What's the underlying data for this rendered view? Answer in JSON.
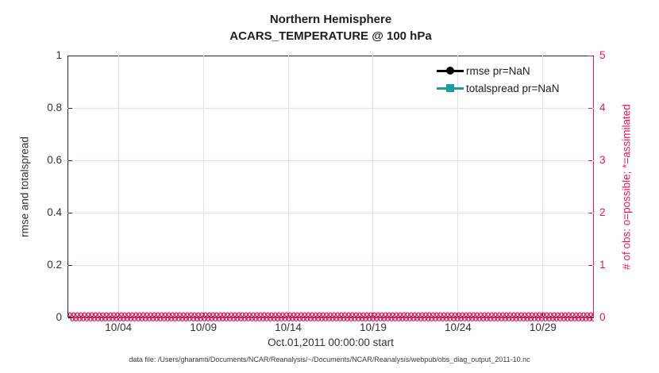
{
  "figure": {
    "title": "Northern Hemisphere",
    "subtitle": "ACARS_TEMPERATURE @ 100 hPa",
    "caption": "data file: /Users/gharamti/Documents/NCAR/Reanalysis/~/Documents/NCAR/Reanalysis/webpub/obs_diag_output_2011-10.nc"
  },
  "axes": {
    "left": {
      "label": "rmse and totalspread",
      "tick_labels": [
        "1",
        "0.8",
        "0.6",
        "0.4",
        "0.2",
        "0"
      ],
      "color": "#262626"
    },
    "right": {
      "label": "# of obs: o=possible; *=assimilated",
      "tick_labels": [
        "5",
        "4",
        "3",
        "2",
        "1",
        "0"
      ],
      "color": "#E8175D"
    },
    "x": {
      "label": "Oct.01,2011 00:00:00 start",
      "tick_labels": [
        "10/04",
        "10/09",
        "10/14",
        "10/19",
        "10/24",
        "10/29"
      ]
    }
  },
  "legend": {
    "items": [
      {
        "label": "rmse pr=NaN",
        "color": "#000000",
        "marker": "circle"
      },
      {
        "label": "totalspread pr=NaN",
        "color": "#1A9E9E",
        "marker": "square"
      }
    ]
  },
  "obs_band": {
    "glyph": "o",
    "color": "#E8175D",
    "value": 0
  },
  "colors": {
    "accent_pink": "#E8175D",
    "teal": "#1A9E9E",
    "dark_text": "#262626",
    "grid_gray": "#e3e3e3",
    "grid_pink": "#f8d9e6"
  },
  "chart_data": {
    "type": "line",
    "title": "Northern Hemisphere",
    "subtitle": "ACARS_TEMPERATURE @ 100 hPa",
    "xlabel": "Oct.01,2011 00:00:00 start",
    "ylabel_left": "rmse and totalspread",
    "ylabel_right": "# of obs: o=possible; *=assimilated",
    "ylim_left": [
      0,
      1
    ],
    "ylim_right": [
      0,
      5
    ],
    "yticks_left": [
      0,
      0.2,
      0.4,
      0.6,
      0.8,
      1
    ],
    "yticks_right": [
      0,
      1,
      2,
      3,
      4,
      5
    ],
    "xtick_labels": [
      "10/04",
      "10/09",
      "10/14",
      "10/19",
      "10/24",
      "10/29"
    ],
    "xtick_days": [
      4,
      9,
      14,
      19,
      24,
      29
    ],
    "x_range_days": [
      1,
      32
    ],
    "grid": true,
    "legend_position": "top-right-inside",
    "series": [
      {
        "name": "rmse pr=NaN",
        "axis": "left",
        "color": "#000000",
        "marker": "circle",
        "values": null,
        "note": "pr=NaN, no curve drawn"
      },
      {
        "name": "totalspread pr=NaN",
        "axis": "left",
        "color": "#1A9E9E",
        "marker": "square",
        "values": null,
        "note": "pr=NaN, no curve drawn"
      },
      {
        "name": "# of obs possible (o)",
        "axis": "right",
        "color": "#E8175D",
        "marker": "o",
        "constant_value": 0
      },
      {
        "name": "# of obs assimilated (*)",
        "axis": "right",
        "color": "#E8175D",
        "marker": "*",
        "constant_value": 0
      }
    ]
  }
}
